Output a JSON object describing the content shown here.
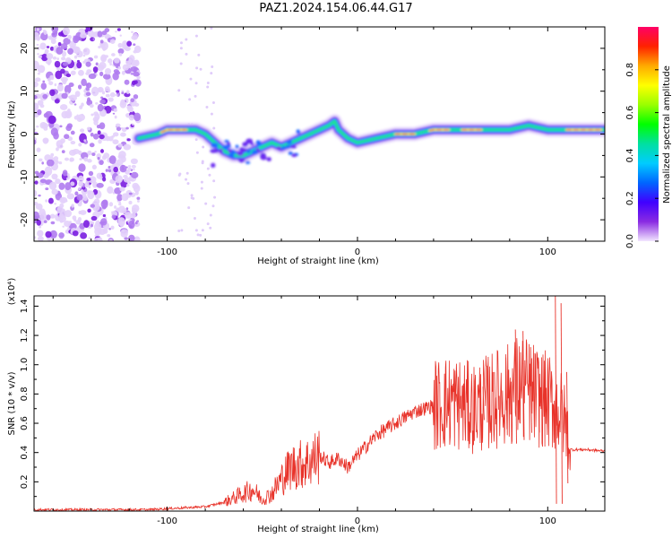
{
  "title": "PAZ1.2024.154.06.44.G17",
  "chart_data": [
    {
      "type": "heatmap",
      "xlabel": "Height of straight line (km)",
      "ylabel": "Frequency (Hz)",
      "xlim": [
        -170,
        130
      ],
      "ylim": [
        -25,
        25
      ],
      "x_ticks": [
        -100,
        0,
        100
      ],
      "y_ticks": [
        -20,
        -10,
        0,
        10,
        20
      ],
      "colorbar": {
        "label": "Normalized spectral amplitude",
        "range": [
          0,
          1
        ],
        "ticks": [
          "0.0",
          "0.2",
          "0.4",
          "0.6",
          "0.8"
        ],
        "colors": [
          "#f2e6ff",
          "#8a2be2",
          "#4000ff",
          "#0066ff",
          "#00ccff",
          "#00e0a0",
          "#00ff00",
          "#99ff00",
          "#ffff00",
          "#ffaa00",
          "#ff2200",
          "#ff0066"
        ]
      },
      "ridge": {
        "x": [
          -115,
          -105,
          -100,
          -95,
          -90,
          -85,
          -80,
          -75,
          -70,
          -65,
          -60,
          -55,
          -50,
          -45,
          -40,
          -35,
          -30,
          -25,
          -20,
          -15,
          -12,
          -10,
          -5,
          0,
          10,
          20,
          30,
          40,
          50,
          60,
          70,
          80,
          90,
          100,
          110,
          120,
          130
        ],
        "y": [
          -1,
          0,
          1,
          1,
          1,
          1,
          0,
          -2,
          -4,
          -5,
          -5,
          -4,
          -3,
          -2,
          -3,
          -2,
          -1,
          0,
          1,
          2,
          3,
          1,
          -1,
          -2,
          -1,
          0,
          0,
          1,
          1,
          1,
          1,
          1,
          2,
          1,
          1,
          1,
          1
        ]
      },
      "noise_region_x": [
        -170,
        -100
      ]
    },
    {
      "type": "line",
      "xlabel": "Height of straight line (km)",
      "ylabel": "SNR (10 * v/v)",
      "y_multiplier_label": "(x10⁴)",
      "xlim": [
        -170,
        130
      ],
      "ylim": [
        0,
        1.47
      ],
      "x_ticks": [
        -100,
        0,
        100
      ],
      "y_ticks": [
        "0.2",
        "0.4",
        "0.6",
        "0.8",
        "1.0",
        "1.2",
        "1.4"
      ],
      "series": [
        {
          "color": "#e8332a",
          "x": [
            -170,
            -150,
            -130,
            -110,
            -95,
            -80,
            -70,
            -60,
            -55,
            -50,
            -45,
            -40,
            -35,
            -30,
            -25,
            -20,
            -15,
            -10,
            -5,
            0,
            10,
            20,
            30,
            40,
            50,
            60,
            70,
            75,
            80,
            85,
            90,
            95,
            100,
            103,
            105,
            108,
            110,
            112,
            115,
            120,
            130
          ],
          "y": [
            0.01,
            0.01,
            0.01,
            0.01,
            0.02,
            0.03,
            0.06,
            0.12,
            0.15,
            0.08,
            0.12,
            0.22,
            0.3,
            0.32,
            0.34,
            0.38,
            0.33,
            0.36,
            0.3,
            0.38,
            0.52,
            0.6,
            0.68,
            0.72,
            0.75,
            0.7,
            0.75,
            0.78,
            0.8,
            0.85,
            0.82,
            0.78,
            0.75,
            0.72,
            0.7,
            0.65,
            0.55,
            0.42,
            0.42,
            0.42,
            0.41
          ]
        }
      ],
      "spikes": [
        {
          "x": 52,
          "y": 0.8
        },
        {
          "x": 66,
          "y": 0.85
        },
        {
          "x": 72,
          "y": 0.95
        },
        {
          "x": 78,
          "y": 1.05
        },
        {
          "x": 83,
          "y": 1.24
        },
        {
          "x": 87,
          "y": 1.23
        },
        {
          "x": 91,
          "y": 1.12
        },
        {
          "x": 95,
          "y": 1.05
        },
        {
          "x": 104,
          "y": 1.48
        },
        {
          "x": 107,
          "y": 1.42
        },
        {
          "x": 110,
          "y": 0.95
        }
      ]
    }
  ]
}
